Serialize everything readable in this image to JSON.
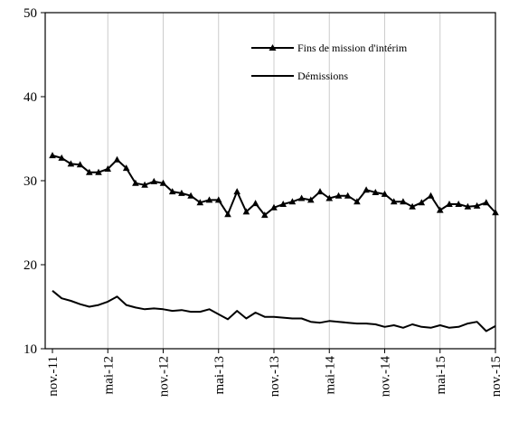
{
  "chart_data": {
    "type": "line",
    "ylim": [
      10,
      50
    ],
    "yticks": [
      10,
      20,
      30,
      40,
      50
    ],
    "x_tick_labels": [
      "nov.-11",
      "mai-12",
      "nov.-12",
      "mai-13",
      "nov.-13",
      "mai-14",
      "nov.-14",
      "mai-15",
      "nov.-15"
    ],
    "x_tick_interval_months": 6,
    "n_points": 49,
    "grid": "vertical",
    "legend_position": "top-right",
    "colors": {
      "line": "#000000",
      "axis": "#000000",
      "grid": "#cccccc"
    },
    "series": [
      {
        "name": "Fins de mission d'intérim",
        "marker": "triangle",
        "values": [
          33.0,
          32.7,
          32.0,
          31.9,
          31.0,
          31.0,
          31.4,
          32.5,
          31.5,
          29.7,
          29.5,
          29.9,
          29.7,
          28.7,
          28.5,
          28.2,
          27.4,
          27.7,
          27.7,
          26.0,
          28.7,
          26.3,
          27.3,
          25.9,
          26.8,
          27.2,
          27.5,
          27.9,
          27.7,
          28.7,
          27.9,
          28.2,
          28.2,
          27.5,
          28.9,
          28.6,
          28.4,
          27.5,
          27.5,
          26.9,
          27.4,
          28.2,
          26.5,
          27.2,
          27.2,
          26.9,
          27.0,
          27.4,
          26.2
        ]
      },
      {
        "name": "Démissions",
        "marker": "none",
        "values": [
          16.9,
          16.0,
          15.7,
          15.3,
          15.0,
          15.2,
          15.6,
          16.2,
          15.2,
          14.9,
          14.7,
          14.8,
          14.7,
          14.5,
          14.6,
          14.4,
          14.4,
          14.7,
          14.1,
          13.5,
          14.5,
          13.6,
          14.3,
          13.8,
          13.8,
          13.7,
          13.6,
          13.6,
          13.2,
          13.1,
          13.3,
          13.2,
          13.1,
          13.0,
          13.0,
          12.9,
          12.6,
          12.8,
          12.5,
          12.9,
          12.6,
          12.5,
          12.8,
          12.5,
          12.6,
          13.0,
          13.2,
          12.1,
          12.7
        ]
      }
    ]
  }
}
